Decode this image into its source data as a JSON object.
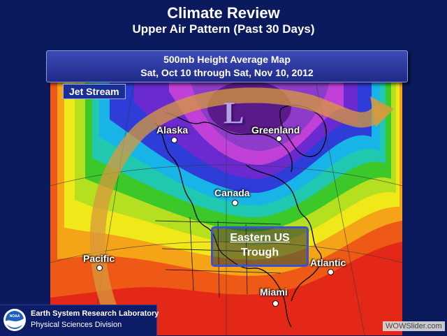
{
  "header": {
    "title": "Climate Review",
    "subtitle": "Upper Air Pattern (Past 30 Days)"
  },
  "banner": {
    "line1": "500mb Height Average Map",
    "line2": "Sat, Oct 10 through Sat, Nov 10, 2012"
  },
  "map": {
    "jet_label": "Jet Stream",
    "low_symbol": "L",
    "places": {
      "alaska": "Alaska",
      "greenland": "Greenland",
      "canada": "Canada",
      "pacific": "Pacific",
      "atlantic": "Atlantic",
      "miami": "Miami"
    },
    "trough": {
      "line1": "Eastern US",
      "line2": "Trough"
    },
    "colors": {
      "low_center": "#5a1a8a",
      "purple": "#8c3cc8",
      "magenta": "#c040d8",
      "blue": "#2e3cd8",
      "cyan": "#18b4e8",
      "teal": "#20c8b0",
      "green": "#3cc828",
      "yellow_green": "#b4e020",
      "yellow": "#f0e818",
      "orange": "#f5a418",
      "red_orange": "#ee5a16",
      "red": "#e42818",
      "jet_arrow": "#d89a3c"
    }
  },
  "logo": {
    "line1": "Earth System Research Laboratory",
    "line2": "Physical Sciences Division",
    "emblem_text": "NOAA"
  },
  "watermark": "WOWSlider.com"
}
